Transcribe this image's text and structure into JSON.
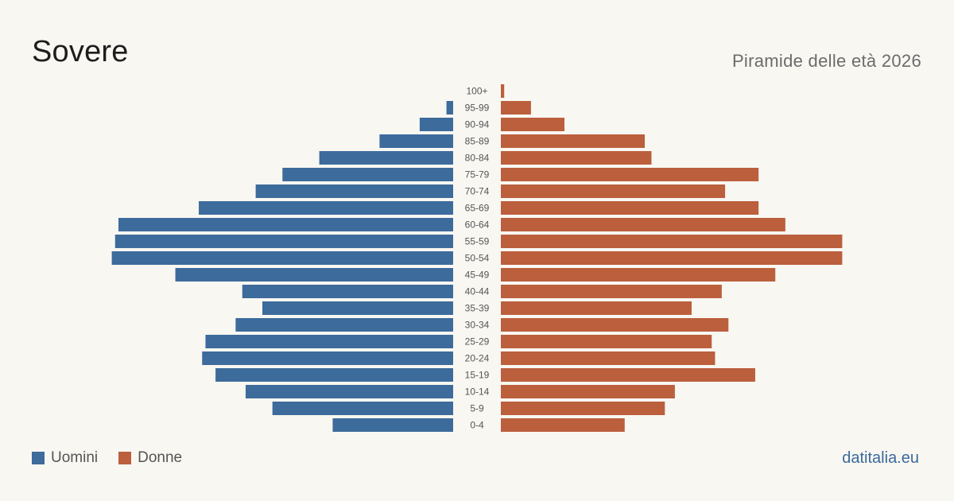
{
  "title": "Sovere",
  "subtitle": "Piramide delle età 2026",
  "source": "datitalia.eu",
  "colors": {
    "men": "#3d6b9c",
    "women": "#bb5f3d",
    "label": "#555555"
  },
  "chart_data": {
    "type": "bar",
    "orientation": "horizontal-pyramid",
    "categories": [
      "100+",
      "95-99",
      "90-94",
      "85-89",
      "80-84",
      "75-79",
      "70-74",
      "65-69",
      "60-64",
      "55-59",
      "50-54",
      "45-49",
      "40-44",
      "35-39",
      "30-34",
      "25-29",
      "20-24",
      "15-19",
      "10-14",
      "5-9",
      "0-4"
    ],
    "series": [
      {
        "name": "Uomini",
        "values": [
          0,
          2,
          10,
          22,
          40,
          51,
          59,
          76,
          100,
          101,
          102,
          83,
          63,
          57,
          65,
          74,
          75,
          71,
          62,
          54,
          36
        ]
      },
      {
        "name": "Donne",
        "values": [
          1,
          9,
          19,
          43,
          45,
          77,
          67,
          77,
          85,
          102,
          102,
          82,
          66,
          57,
          68,
          63,
          64,
          76,
          52,
          49,
          37
        ]
      }
    ],
    "legend": "bottom-left",
    "grid": false
  }
}
